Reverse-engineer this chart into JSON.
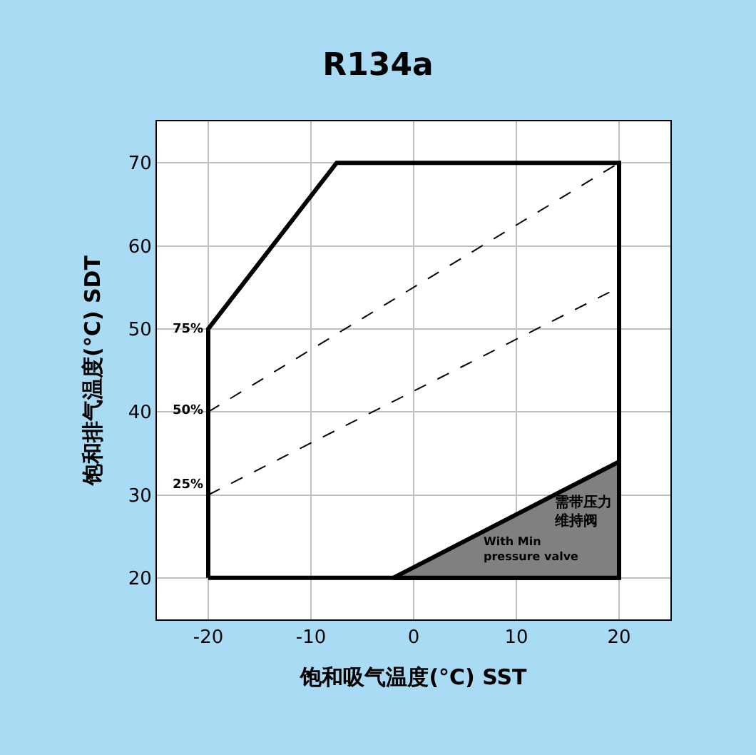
{
  "chart_data": {
    "type": "line",
    "title": "R134a",
    "xlabel": "饱和吸气温度(°C) SST",
    "ylabel": "饱和排气温度(°C) SDT",
    "xlim": [
      -25,
      25
    ],
    "xticks": [
      -20,
      -10,
      0,
      10,
      20
    ],
    "ylim": [
      15,
      75
    ],
    "yticks": [
      20,
      30,
      40,
      50,
      60,
      70
    ],
    "grid": true,
    "series": [
      {
        "color": "#000000",
        "line_style": "solid",
        "x": [
          -20,
          -20,
          -7.5,
          20,
          20
        ],
        "values": [
          20,
          50,
          70,
          70,
          20
        ]
      },
      {
        "color": "#000000",
        "line_style": "solid",
        "x": [
          -20,
          20
        ],
        "values": [
          20,
          20
        ]
      },
      {
        "color": "#000000",
        "line_style": "dashed",
        "x": [
          -20,
          20
        ],
        "values": [
          40,
          70
        ]
      },
      {
        "color": "#000000",
        "line_style": "dashed",
        "x": [
          -20,
          20
        ],
        "values": [
          30,
          55
        ]
      },
      {
        "type": "area",
        "color": "#808080",
        "x": [
          -2,
          20,
          20,
          -2
        ],
        "values": [
          20,
          20,
          34,
          20
        ]
      }
    ],
    "annotations": [
      "75%",
      "50%",
      "25%",
      "需带压力维持阀",
      "With Min\npressure valve"
    ]
  }
}
